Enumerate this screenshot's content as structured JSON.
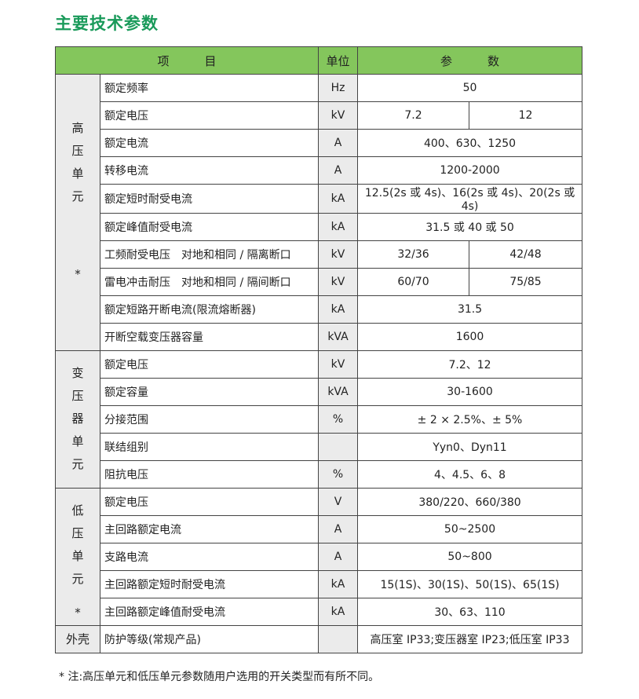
{
  "title": "主要技术参数",
  "headers": {
    "item": "项　　　目",
    "unit": "单位",
    "param": "参　　　数"
  },
  "groups": [
    {
      "label": [
        "高",
        "压",
        "单",
        "元"
      ],
      "star": "*",
      "rows": [
        {
          "item": "额定频率",
          "unit": "Hz",
          "values": [
            "50"
          ]
        },
        {
          "item": "额定电压",
          "unit": "kV",
          "values": [
            "7.2",
            "12"
          ]
        },
        {
          "item": "额定电流",
          "unit": "A",
          "values": [
            "400、630、1250"
          ]
        },
        {
          "item": "转移电流",
          "unit": "A",
          "values": [
            "1200-2000"
          ]
        },
        {
          "item": "额定短时耐受电流",
          "unit": "kA",
          "values": [
            "12.5(2s 或 4s)、16(2s 或 4s)、20(2s 或 4s)"
          ]
        },
        {
          "item": "额定峰值耐受电流",
          "unit": "kA",
          "values": [
            "31.5 或 40 或 50"
          ]
        },
        {
          "item": "工频耐受电压　对地和相同 / 隔离断口",
          "unit": "kV",
          "values": [
            "32/36",
            "42/48"
          ]
        },
        {
          "item": "雷电冲击耐压　对地和相同 / 隔间断口",
          "unit": "kV",
          "values": [
            "60/70",
            "75/85"
          ]
        },
        {
          "item": "额定短路开断电流(限流熔断器)",
          "unit": "kA",
          "values": [
            "31.5"
          ]
        },
        {
          "item": "开断空载变压器容量",
          "unit": "kVA",
          "values": [
            "1600"
          ]
        }
      ]
    },
    {
      "label": [
        "变",
        "压",
        "器",
        "单",
        "元"
      ],
      "star": "",
      "rows": [
        {
          "item": "额定电压",
          "unit": "kV",
          "values": [
            "7.2、12"
          ]
        },
        {
          "item": "额定容量",
          "unit": "kVA",
          "values": [
            "30-1600"
          ]
        },
        {
          "item": "分接范围",
          "unit": "%",
          "values": [
            "± 2 × 2.5%、± 5%"
          ]
        },
        {
          "item": "联结组别",
          "unit": "",
          "values": [
            "Yyn0、Dyn11"
          ]
        },
        {
          "item": "阻抗电压",
          "unit": "%",
          "values": [
            "4、4.5、6、8"
          ]
        }
      ]
    },
    {
      "label": [
        "低",
        "压",
        "单",
        "元"
      ],
      "star": "*",
      "rows": [
        {
          "item": "额定电压",
          "unit": "V",
          "values": [
            "380/220、660/380"
          ]
        },
        {
          "item": "主回路额定电流",
          "unit": "A",
          "values": [
            "50~2500"
          ]
        },
        {
          "item": "支路电流",
          "unit": "A",
          "values": [
            "50~800"
          ]
        },
        {
          "item": "主回路额定短时耐受电流",
          "unit": "kA",
          "values": [
            "15(1S)、30(1S)、50(1S)、65(1S)"
          ]
        },
        {
          "item": "主回路额定峰值耐受电流",
          "unit": "kA",
          "values": [
            "30、63、110"
          ]
        }
      ]
    },
    {
      "label": [
        "外壳"
      ],
      "star": "",
      "rows": [
        {
          "item": "防护等级(常规产品)",
          "unit": "",
          "values": [
            "高压室 IP33;变压器室 IP23;低压室 IP33"
          ]
        }
      ]
    }
  ],
  "note": "* 注:高压单元和低压单元参数随用户选用的开关类型而有所不同。"
}
